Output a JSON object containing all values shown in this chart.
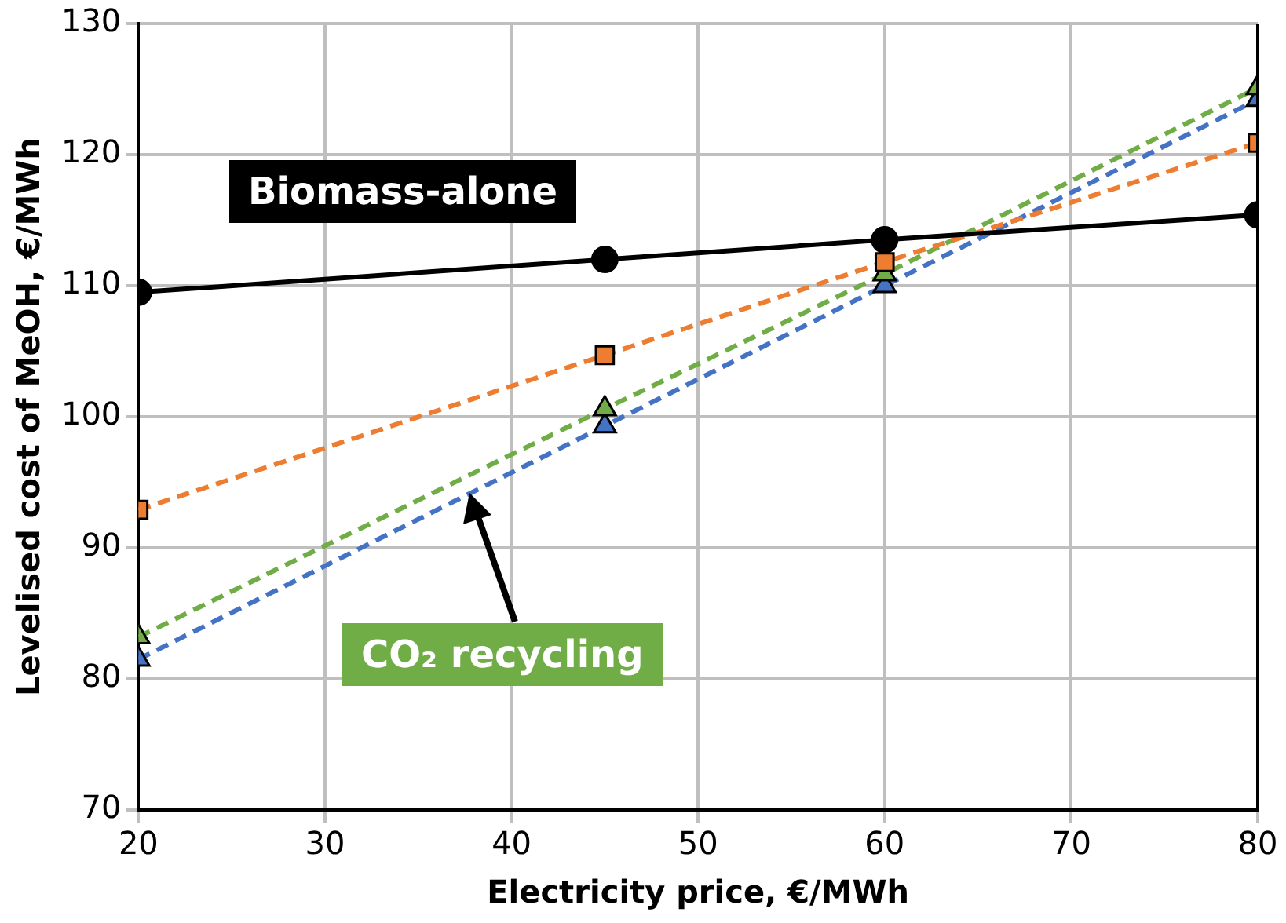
{
  "chart_data": {
    "type": "line",
    "xlabel": "Electricity price, €/MWh",
    "ylabel": "Levelised cost of MeOH, €/MWh",
    "x": [
      20,
      45,
      60,
      80
    ],
    "series": [
      {
        "color": "#000000",
        "values": [
          109.5,
          112.0,
          113.5,
          115.4
        ],
        "marker": "circle",
        "line_style": "solid"
      },
      {
        "color": "#ed7d31",
        "values": [
          92.9,
          104.7,
          111.8,
          120.9
        ],
        "marker": "square",
        "line_style": "dashed"
      },
      {
        "color": "#70ad47",
        "values": [
          83.2,
          100.6,
          110.9,
          125.1
        ],
        "marker": "triangle",
        "line_style": "dashed"
      },
      {
        "color": "#4472c4",
        "values": [
          81.5,
          99.3,
          110.0,
          124.2
        ],
        "marker": "triangle",
        "line_style": "dashed"
      }
    ],
    "annotations": [
      "Biomass-alone",
      "CO₂ recycling"
    ],
    "xlim": [
      20,
      80
    ],
    "xticks": [
      20,
      30,
      40,
      50,
      60,
      70,
      80
    ],
    "ylim": [
      70,
      130
    ],
    "yticks": [
      70,
      80,
      90,
      100,
      110,
      120,
      130
    ],
    "grid": true,
    "legend": false
  }
}
